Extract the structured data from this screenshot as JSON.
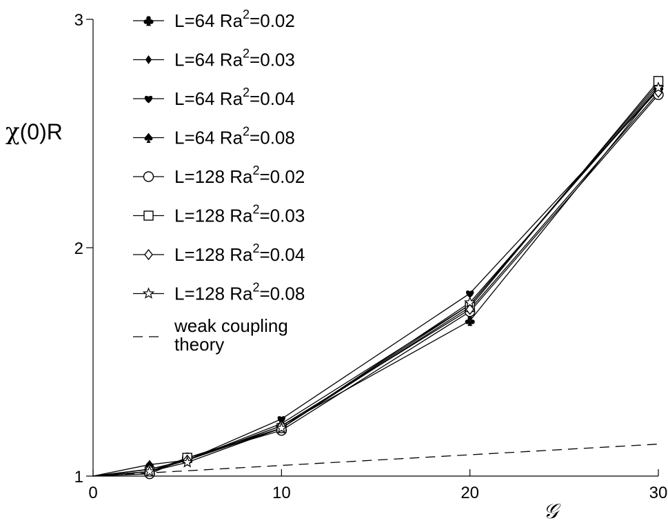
{
  "chart_data": {
    "type": "line",
    "title": "",
    "xlabel": "𝒢",
    "ylabel_chi": "χ",
    "ylabel_rest": "(0)R",
    "xlim": [
      0,
      30
    ],
    "ylim": [
      1,
      3
    ],
    "xticks": [
      0,
      10,
      20,
      30
    ],
    "xtick_labels": [
      "0",
      "10",
      "20",
      "30"
    ],
    "yticks": [
      1,
      2,
      3
    ],
    "ytick_labels": [
      "1",
      "2",
      "3"
    ],
    "legend_position": "top-left",
    "x": [
      3,
      5,
      10,
      20,
      30
    ],
    "series": [
      {
        "name": "L=64 Ra²=0.02",
        "label_main": "L=64  Ra",
        "label_sup": "2",
        "label_tail": "=0.02",
        "marker": "club",
        "values": [
          1.02,
          1.07,
          1.22,
          1.68,
          2.7
        ]
      },
      {
        "name": "L=64 Ra²=0.03",
        "label_main": "L=64  Ra",
        "label_sup": "2",
        "label_tail": "=0.03",
        "marker": "diamond",
        "values": [
          1.03,
          1.07,
          1.23,
          1.75,
          2.71
        ]
      },
      {
        "name": "L=64 Ra²=0.04",
        "label_main": "L=64  Ra",
        "label_sup": "2",
        "label_tail": "=0.04",
        "marker": "heart",
        "values": [
          1.03,
          1.07,
          1.25,
          1.8,
          2.69
        ]
      },
      {
        "name": "L=64 Ra²=0.08",
        "label_main": "L=64  Ra",
        "label_sup": "2",
        "label_tail": "=0.08",
        "marker": "spade",
        "values": [
          1.05,
          1.07,
          1.21,
          1.75,
          2.72
        ]
      },
      {
        "name": "L=128 Ra²=0.02",
        "label_main": "L=128  Ra",
        "label_sup": "2",
        "label_tail": "=0.02",
        "marker": "circle-open",
        "values": [
          1.01,
          1.08,
          1.2,
          1.72,
          2.67
        ]
      },
      {
        "name": "L=128 Ra²=0.03",
        "label_main": "L=128  Ra",
        "label_sup": "2",
        "label_tail": "=0.03",
        "marker": "square-open",
        "values": [
          1.02,
          1.08,
          1.21,
          1.74,
          2.73
        ]
      },
      {
        "name": "L=128 Ra²=0.04",
        "label_main": "L=128  Ra",
        "label_sup": "2",
        "label_tail": "=0.04",
        "marker": "diamond-open",
        "values": [
          1.03,
          1.07,
          1.22,
          1.73,
          2.68
        ]
      },
      {
        "name": "L=128 Ra²=0.08",
        "label_main": "L=128  Ra",
        "label_sup": "2",
        "label_tail": "=0.08",
        "marker": "star-open",
        "values": [
          1.02,
          1.06,
          1.21,
          1.76,
          2.7
        ]
      }
    ],
    "reference": {
      "name": "weak coupling theory",
      "label_lines": [
        "weak coupling",
        "theory"
      ],
      "style": "dashed",
      "x": [
        0,
        30
      ],
      "values": [
        1.0,
        1.14
      ]
    }
  }
}
